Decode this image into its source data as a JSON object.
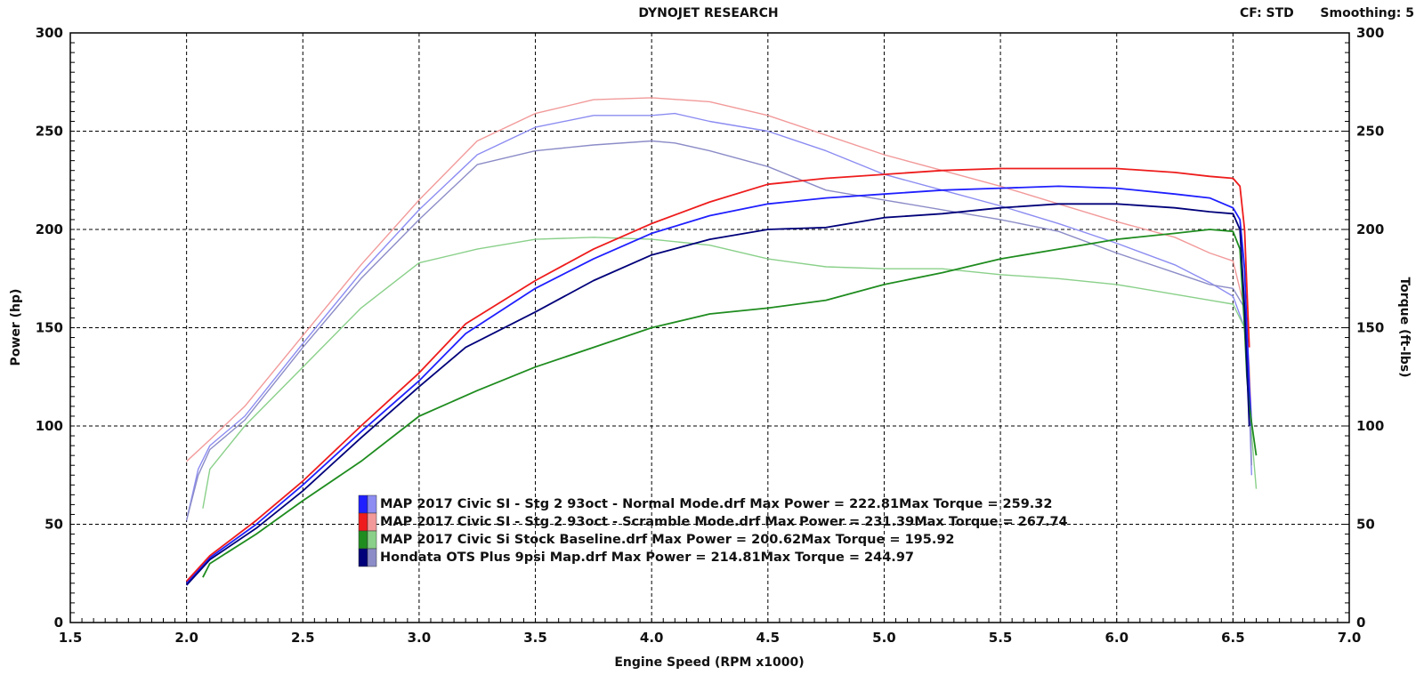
{
  "header": {
    "title": "DYNOJET RESEARCH",
    "cf": "CF: STD",
    "smoothing": "Smoothing: 5"
  },
  "chart_data": {
    "type": "line",
    "title": "DYNOJET RESEARCH",
    "xlabel": "Engine Speed (RPM x1000)",
    "ylabel": "Power (hp)",
    "y2label": "Torque (ft-lbs)",
    "xlim": [
      1.5,
      7.0
    ],
    "ylim": [
      0,
      300
    ],
    "y2lim": [
      0,
      300
    ],
    "xticks": [
      "1.5",
      "2.0",
      "2.5",
      "3.0",
      "3.5",
      "4.0",
      "4.5",
      "5.0",
      "5.5",
      "6.0",
      "6.5",
      "7.0"
    ],
    "yticks": [
      "0",
      "50",
      "100",
      "150",
      "200",
      "250",
      "300"
    ],
    "grid": true,
    "legend_position": "bottom-center",
    "series": [
      {
        "name": "MAP 2017 Civic SI - Stg 2 93oct - Normal Mode.drf",
        "max_power": "Max Power = 222.81",
        "max_torque": "Max Torque = 259.32",
        "color": "#1f1fff",
        "torque_color": "#8c8cf2",
        "power": [
          [
            2.0,
            20
          ],
          [
            2.1,
            33
          ],
          [
            2.3,
            50
          ],
          [
            2.5,
            70
          ],
          [
            2.75,
            97
          ],
          [
            3.0,
            123
          ],
          [
            3.2,
            147
          ],
          [
            3.5,
            170
          ],
          [
            3.75,
            185
          ],
          [
            4.0,
            198
          ],
          [
            4.25,
            207
          ],
          [
            4.5,
            213
          ],
          [
            4.75,
            216
          ],
          [
            5.0,
            218
          ],
          [
            5.25,
            220
          ],
          [
            5.5,
            221
          ],
          [
            5.75,
            222
          ],
          [
            6.0,
            221
          ],
          [
            6.25,
            218
          ],
          [
            6.4,
            216
          ],
          [
            6.5,
            211
          ],
          [
            6.53,
            205
          ],
          [
            6.55,
            180
          ],
          [
            6.56,
            150
          ],
          [
            6.57,
            120
          ],
          [
            6.58,
            100
          ]
        ],
        "torque": [
          [
            2.0,
            52
          ],
          [
            2.05,
            78
          ],
          [
            2.1,
            90
          ],
          [
            2.25,
            105
          ],
          [
            2.5,
            142
          ],
          [
            2.75,
            178
          ],
          [
            3.0,
            210
          ],
          [
            3.25,
            238
          ],
          [
            3.5,
            252
          ],
          [
            3.75,
            258
          ],
          [
            4.0,
            258
          ],
          [
            4.1,
            259
          ],
          [
            4.25,
            255
          ],
          [
            4.5,
            250
          ],
          [
            4.75,
            240
          ],
          [
            5.0,
            228
          ],
          [
            5.25,
            220
          ],
          [
            5.5,
            212
          ],
          [
            5.75,
            203
          ],
          [
            6.0,
            193
          ],
          [
            6.25,
            182
          ],
          [
            6.4,
            173
          ],
          [
            6.5,
            166
          ],
          [
            6.55,
            150
          ],
          [
            6.57,
            110
          ],
          [
            6.58,
            75
          ]
        ]
      },
      {
        "name": "MAP 2017 Civic SI - Stg 2 93oct - Scramble Mode.drf",
        "max_power": "Max Power = 231.39",
        "max_torque": "Max Torque = 267.74",
        "color": "#ee1c1c",
        "torque_color": "#f29a9a",
        "power": [
          [
            2.0,
            21
          ],
          [
            2.1,
            34
          ],
          [
            2.3,
            52
          ],
          [
            2.5,
            72
          ],
          [
            2.75,
            100
          ],
          [
            3.0,
            127
          ],
          [
            3.2,
            152
          ],
          [
            3.5,
            174
          ],
          [
            3.75,
            190
          ],
          [
            4.0,
            203
          ],
          [
            4.25,
            214
          ],
          [
            4.5,
            223
          ],
          [
            4.75,
            226
          ],
          [
            5.0,
            228
          ],
          [
            5.25,
            230
          ],
          [
            5.5,
            231
          ],
          [
            5.75,
            231
          ],
          [
            6.0,
            231
          ],
          [
            6.25,
            229
          ],
          [
            6.4,
            227
          ],
          [
            6.5,
            226
          ],
          [
            6.53,
            222
          ],
          [
            6.55,
            200
          ],
          [
            6.56,
            170
          ],
          [
            6.57,
            140
          ]
        ],
        "torque": [
          [
            2.0,
            82
          ],
          [
            2.1,
            93
          ],
          [
            2.25,
            110
          ],
          [
            2.5,
            146
          ],
          [
            2.75,
            182
          ],
          [
            3.0,
            215
          ],
          [
            3.25,
            245
          ],
          [
            3.5,
            259
          ],
          [
            3.75,
            266
          ],
          [
            4.0,
            267
          ],
          [
            4.25,
            265
          ],
          [
            4.5,
            258
          ],
          [
            4.75,
            248
          ],
          [
            5.0,
            238
          ],
          [
            5.25,
            230
          ],
          [
            5.5,
            222
          ],
          [
            5.75,
            213
          ],
          [
            6.0,
            204
          ],
          [
            6.25,
            196
          ],
          [
            6.4,
            188
          ],
          [
            6.5,
            184
          ],
          [
            6.55,
            160
          ],
          [
            6.57,
            130
          ],
          [
            6.58,
            100
          ]
        ]
      },
      {
        "name": "MAP 2017 Civic Si Stock Baseline.drf",
        "max_power": "Max Power = 200.62",
        "max_torque": "Max Torque = 195.92",
        "color": "#1f8c1f",
        "torque_color": "#8ad08a",
        "power": [
          [
            2.07,
            23
          ],
          [
            2.1,
            30
          ],
          [
            2.3,
            45
          ],
          [
            2.5,
            62
          ],
          [
            2.75,
            82
          ],
          [
            3.0,
            105
          ],
          [
            3.25,
            118
          ],
          [
            3.5,
            130
          ],
          [
            3.75,
            140
          ],
          [
            4.0,
            150
          ],
          [
            4.25,
            157
          ],
          [
            4.5,
            160
          ],
          [
            4.75,
            164
          ],
          [
            5.0,
            172
          ],
          [
            5.25,
            178
          ],
          [
            5.5,
            185
          ],
          [
            5.75,
            190
          ],
          [
            6.0,
            195
          ],
          [
            6.25,
            198
          ],
          [
            6.4,
            200
          ],
          [
            6.5,
            199
          ],
          [
            6.53,
            190
          ],
          [
            6.55,
            150
          ],
          [
            6.56,
            125
          ],
          [
            6.57,
            110
          ],
          [
            6.6,
            85
          ]
        ],
        "torque": [
          [
            2.07,
            58
          ],
          [
            2.1,
            78
          ],
          [
            2.25,
            100
          ],
          [
            2.5,
            130
          ],
          [
            2.75,
            160
          ],
          [
            3.0,
            183
          ],
          [
            3.25,
            190
          ],
          [
            3.5,
            195
          ],
          [
            3.75,
            196
          ],
          [
            4.0,
            195
          ],
          [
            4.25,
            192
          ],
          [
            4.5,
            185
          ],
          [
            4.75,
            181
          ],
          [
            5.0,
            180
          ],
          [
            5.25,
            180
          ],
          [
            5.5,
            177
          ],
          [
            5.75,
            175
          ],
          [
            6.0,
            172
          ],
          [
            6.25,
            167
          ],
          [
            6.4,
            164
          ],
          [
            6.5,
            162
          ],
          [
            6.55,
            150
          ],
          [
            6.57,
            110
          ],
          [
            6.6,
            68
          ]
        ]
      },
      {
        "name": "Hondata OTS Plus 9psi Map.drf",
        "max_power": "Max Power = 214.81",
        "max_torque": "Max Torque = 244.97",
        "color": "#00007a",
        "torque_color": "#8c8cc8",
        "power": [
          [
            2.0,
            19
          ],
          [
            2.1,
            32
          ],
          [
            2.3,
            48
          ],
          [
            2.5,
            67
          ],
          [
            2.75,
            94
          ],
          [
            3.0,
            120
          ],
          [
            3.2,
            140
          ],
          [
            3.5,
            158
          ],
          [
            3.75,
            174
          ],
          [
            4.0,
            187
          ],
          [
            4.25,
            195
          ],
          [
            4.5,
            200
          ],
          [
            4.75,
            201
          ],
          [
            5.0,
            206
          ],
          [
            5.25,
            208
          ],
          [
            5.5,
            211
          ],
          [
            5.75,
            213
          ],
          [
            6.0,
            213
          ],
          [
            6.25,
            211
          ],
          [
            6.4,
            209
          ],
          [
            6.5,
            208
          ],
          [
            6.53,
            200
          ],
          [
            6.55,
            160
          ],
          [
            6.56,
            130
          ],
          [
            6.57,
            100
          ]
        ],
        "torque": [
          [
            2.0,
            52
          ],
          [
            2.05,
            75
          ],
          [
            2.1,
            88
          ],
          [
            2.25,
            103
          ],
          [
            2.5,
            140
          ],
          [
            2.75,
            175
          ],
          [
            3.0,
            205
          ],
          [
            3.25,
            233
          ],
          [
            3.5,
            240
          ],
          [
            3.75,
            243
          ],
          [
            4.0,
            245
          ],
          [
            4.1,
            244
          ],
          [
            4.25,
            240
          ],
          [
            4.5,
            232
          ],
          [
            4.75,
            220
          ],
          [
            5.0,
            215
          ],
          [
            5.25,
            210
          ],
          [
            5.5,
            205
          ],
          [
            5.75,
            199
          ],
          [
            6.0,
            188
          ],
          [
            6.25,
            178
          ],
          [
            6.4,
            172
          ],
          [
            6.5,
            170
          ],
          [
            6.55,
            160
          ],
          [
            6.57,
            120
          ],
          [
            6.58,
            80
          ]
        ]
      }
    ]
  }
}
